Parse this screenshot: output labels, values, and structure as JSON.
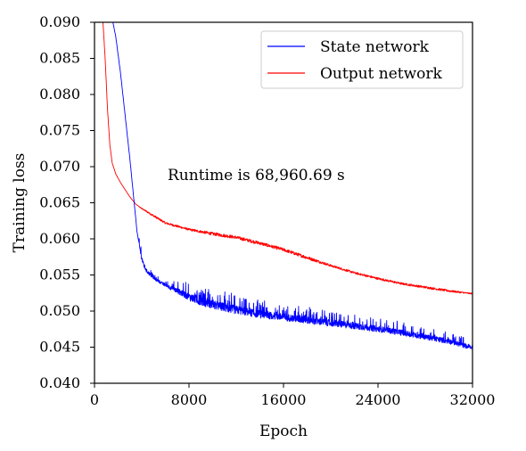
{
  "chart_data": {
    "type": "line",
    "title": "",
    "xlabel": "Epoch",
    "ylabel": "Training loss",
    "xlim": [
      0,
      32000
    ],
    "ylim": [
      0.04,
      0.09
    ],
    "xticks": [
      0,
      8000,
      16000,
      24000,
      32000
    ],
    "xtick_labels": [
      "0",
      "8000",
      "16000",
      "24000",
      "32000"
    ],
    "yticks": [
      0.04,
      0.045,
      0.05,
      0.055,
      0.06,
      0.065,
      0.07,
      0.075,
      0.08,
      0.085,
      0.09
    ],
    "ytick_labels": [
      "0.040",
      "0.045",
      "0.050",
      "0.055",
      "0.060",
      "0.065",
      "0.070",
      "0.075",
      "0.080",
      "0.085",
      "0.090"
    ],
    "grid": false,
    "legend_position": "top-right",
    "annotation": "Runtime is 68,960.69 s",
    "series": [
      {
        "name": "State network",
        "color": "#0000ff",
        "x": [
          1500,
          1800,
          2200,
          2600,
          3000,
          3300,
          3600,
          3900,
          4100,
          4400,
          5000,
          6000,
          7000,
          8000,
          9000,
          10000,
          11000,
          12000,
          13000,
          14000,
          15000,
          16000,
          18000,
          20000,
          22000,
          24000,
          26000,
          28000,
          30000,
          32000
        ],
        "y": [
          0.0905,
          0.088,
          0.083,
          0.077,
          0.071,
          0.066,
          0.061,
          0.058,
          0.0565,
          0.0555,
          0.0545,
          0.0535,
          0.0527,
          0.0518,
          0.0512,
          0.0507,
          0.0503,
          0.05,
          0.0497,
          0.0494,
          0.0492,
          0.049,
          0.0486,
          0.0482,
          0.0478,
          0.0474,
          0.0469,
          0.0463,
          0.0457,
          0.0448
        ],
        "noise_amplitude": [
          0,
          0,
          0,
          0,
          0,
          0,
          0,
          0.0008,
          0.0008,
          0.0005,
          0.0004,
          0.0005,
          0.0008,
          0.0012,
          0.0013,
          0.0013,
          0.0014,
          0.0013,
          0.0012,
          0.0012,
          0.0011,
          0.0011,
          0.0011,
          0.001,
          0.001,
          0.0009,
          0.0009,
          0.0008,
          0.0008,
          0.0007
        ]
      },
      {
        "name": "Output network",
        "color": "#ff0000",
        "x": [
          700,
          900,
          1100,
          1300,
          1500,
          1800,
          2200,
          2600,
          3000,
          3500,
          4000,
          5000,
          6000,
          8000,
          10000,
          12000,
          14000,
          16000,
          18000,
          20000,
          22000,
          24000,
          26000,
          28000,
          30000,
          32000
        ],
        "y": [
          0.0905,
          0.085,
          0.078,
          0.073,
          0.0705,
          0.069,
          0.0678,
          0.0668,
          0.0658,
          0.0648,
          0.0642,
          0.0632,
          0.0622,
          0.0613,
          0.0607,
          0.0602,
          0.0594,
          0.0585,
          0.0574,
          0.0563,
          0.0553,
          0.0545,
          0.0538,
          0.0533,
          0.0528,
          0.0524
        ],
        "noise_amplitude": [
          0,
          0,
          0,
          0,
          0,
          0,
          0,
          0,
          0,
          0,
          0.0001,
          0.0002,
          0.0002,
          0.0002,
          0.0003,
          0.0003,
          0.0003,
          0.0003,
          0.0003,
          0.0002,
          0.0002,
          0.0002,
          0.0002,
          0.0002,
          0.0002,
          0.0001
        ]
      }
    ]
  }
}
